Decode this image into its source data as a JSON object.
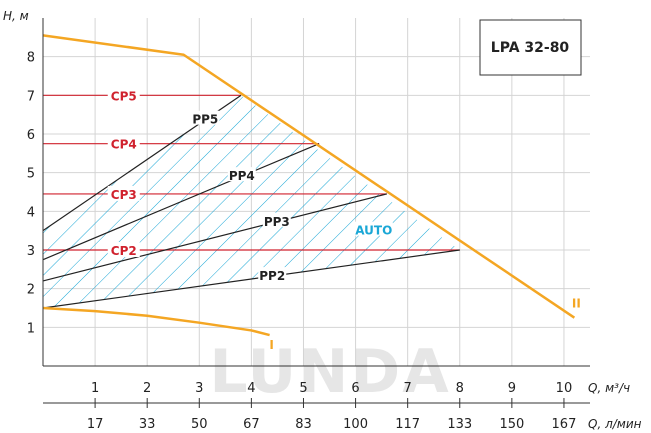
{
  "chart_data": {
    "type": "line",
    "title": "LPA 32-80",
    "ylabel": "H, м",
    "xlabel": "Q, м³/ч",
    "xlabel2": "Q, л/мин",
    "xlim": [
      0,
      10.5
    ],
    "ylim": [
      0,
      9
    ],
    "x_ticks": [
      1,
      2,
      3,
      4,
      5,
      6,
      7,
      8,
      9,
      10
    ],
    "x_ticks_lmin": [
      17,
      33,
      50,
      67,
      83,
      100,
      117,
      133,
      150,
      167
    ],
    "y_ticks": [
      1,
      2,
      3,
      4,
      5,
      6,
      7,
      8
    ],
    "grid": true,
    "watermark": "LUNDA",
    "limit_curves": [
      {
        "name": "I",
        "color": "#f4a623",
        "points": [
          [
            0,
            1.5
          ],
          [
            1,
            1.42
          ],
          [
            2,
            1.3
          ],
          [
            3,
            1.12
          ],
          [
            4,
            0.92
          ],
          [
            4.35,
            0.8
          ]
        ]
      },
      {
        "name": "II",
        "color": "#f4a623",
        "points": [
          [
            0,
            8.55
          ],
          [
            2.7,
            8.05
          ],
          [
            10.2,
            1.25
          ]
        ]
      }
    ],
    "proportional_curves": [
      {
        "name": "PP5",
        "color": "#222222",
        "points": [
          [
            0,
            3.5
          ],
          [
            3.8,
            7.0
          ]
        ]
      },
      {
        "name": "PP4",
        "color": "#222222",
        "points": [
          [
            0,
            2.75
          ],
          [
            5.3,
            5.75
          ]
        ]
      },
      {
        "name": "PP3",
        "color": "#222222",
        "points": [
          [
            0,
            2.2
          ],
          [
            6.6,
            4.45
          ]
        ]
      },
      {
        "name": "PP2",
        "color": "#222222",
        "points": [
          [
            0,
            1.5
          ],
          [
            8.0,
            3.0
          ]
        ]
      }
    ],
    "constant_curves": [
      {
        "name": "CP5",
        "color": "#d0222e",
        "y": 7.0,
        "x_end": 3.8
      },
      {
        "name": "CP4",
        "color": "#d0222e",
        "y": 5.75,
        "x_end": 5.3
      },
      {
        "name": "CP3",
        "color": "#d0222e",
        "y": 4.45,
        "x_end": 6.6
      },
      {
        "name": "CP2",
        "color": "#d0222e",
        "y": 3.0,
        "x_end": 8.0
      }
    ],
    "auto_region": {
      "name": "AUTO",
      "color": "#1aa7d6",
      "polygon": [
        [
          0,
          1.5
        ],
        [
          8.0,
          3.0
        ],
        [
          3.8,
          7.0
        ],
        [
          0,
          3.5
        ]
      ]
    }
  }
}
